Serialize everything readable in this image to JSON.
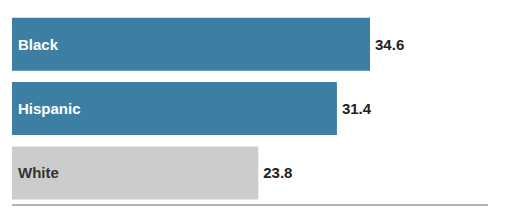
{
  "chart_data": {
    "type": "bar",
    "orientation": "horizontal",
    "categories": [
      "Black",
      "Hispanic",
      "White"
    ],
    "values": [
      34.6,
      31.4,
      23.8
    ],
    "colors": [
      "#3d7fa3",
      "#3d7fa3",
      "#cccccc"
    ],
    "xlim": [
      0,
      46
    ],
    "tick_labels": false,
    "data_labels": true
  }
}
